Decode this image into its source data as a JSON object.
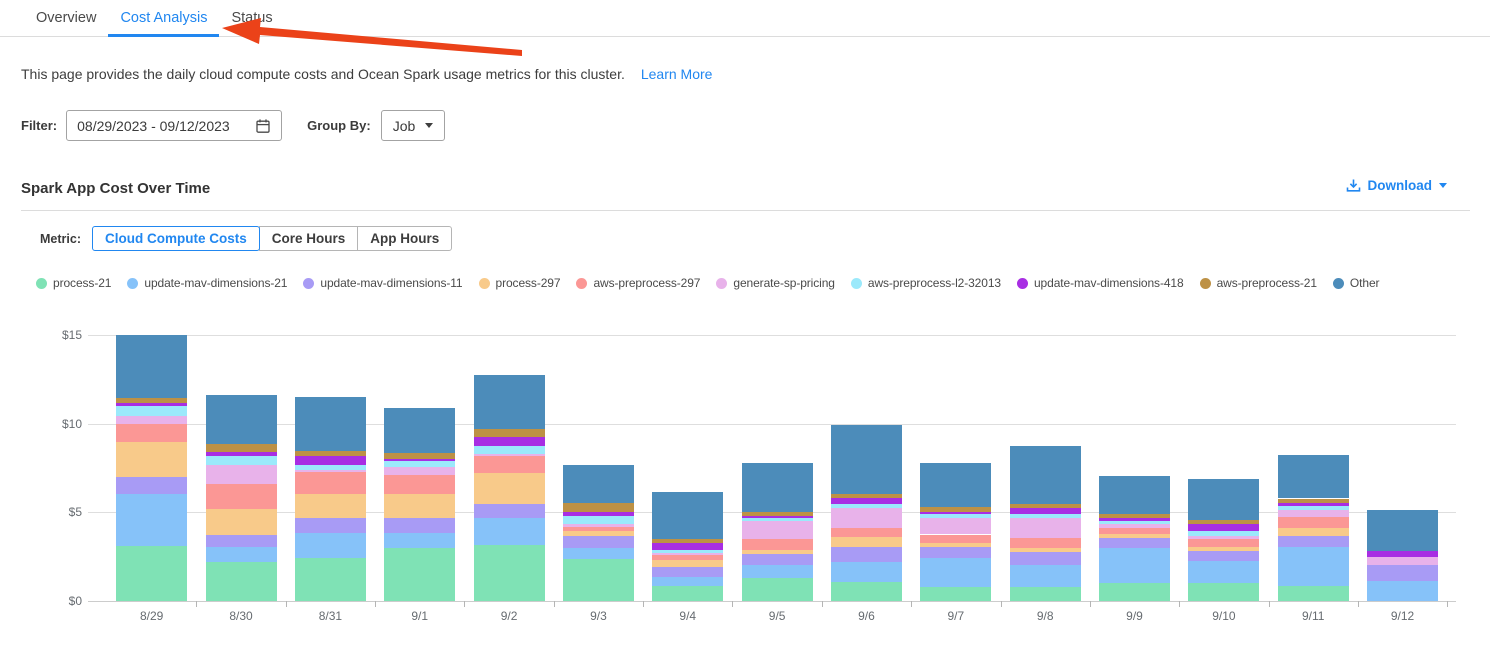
{
  "tabs": {
    "items": [
      {
        "label": "Overview"
      },
      {
        "label": "Cost Analysis"
      },
      {
        "label": "Status"
      }
    ],
    "active": "Cost Analysis"
  },
  "description": {
    "text": "This page provides the daily cloud compute costs and Ocean Spark usage metrics for this cluster.",
    "link": "Learn More"
  },
  "filters": {
    "filter_label": "Filter:",
    "date_range": "08/29/2023  -  09/12/2023",
    "group_by_label": "Group By:",
    "group_by_value": "Job"
  },
  "section": {
    "title": "Spark App Cost Over Time",
    "download_label": "Download"
  },
  "metric": {
    "label": "Metric:",
    "options": [
      "Cloud Compute Costs",
      "Core Hours",
      "App Hours"
    ],
    "selected": "Cloud Compute Costs"
  },
  "colors": {
    "accent_blue": "#2187f0",
    "arrow_red": "#eb4219",
    "gridline": "#dedede",
    "axis_text": "#666b70"
  },
  "chart_data": {
    "type": "bar",
    "stacked": true,
    "title": "Spark App Cost Over Time",
    "xlabel": "",
    "ylabel": "",
    "ytick_prefix": "$",
    "yticks": [
      0,
      5,
      10,
      15
    ],
    "ylim": [
      0,
      15
    ],
    "grid": true,
    "legend_position": "top",
    "categories": [
      "8/29",
      "8/30",
      "8/31",
      "9/1",
      "9/2",
      "9/3",
      "9/4",
      "9/5",
      "9/6",
      "9/7",
      "9/8",
      "9/9",
      "9/10",
      "9/11",
      "9/12"
    ],
    "series": [
      {
        "name": "process-21",
        "color": "#7fe2b5",
        "values": [
          3.1,
          2.18,
          2.4,
          3.01,
          3.14,
          2.39,
          0.87,
          1.29,
          1.06,
          0.81,
          0.81,
          1.0,
          1.04,
          0.85,
          0
        ]
      },
      {
        "name": "update-mav-dimensions-21",
        "color": "#86c2f9",
        "values": [
          2.95,
          0.88,
          1.42,
          0.85,
          1.52,
          0.6,
          0.46,
          0.72,
          1.14,
          1.61,
          1.2,
          1.99,
          1.2,
          2.18,
          1.14
        ]
      },
      {
        "name": "update-mav-dimensions-11",
        "color": "#a89bf5",
        "values": [
          0.96,
          0.68,
          0.84,
          0.84,
          0.83,
          0.66,
          0.56,
          0.64,
          0.83,
          0.61,
          0.75,
          0.57,
          0.56,
          0.66,
          0.91
        ]
      },
      {
        "name": "process-297",
        "color": "#f8ca8a",
        "values": [
          1.94,
          1.45,
          1.36,
          1.32,
          1.71,
          0.29,
          0.44,
          0.25,
          0.57,
          0.24,
          0.23,
          0.22,
          0.23,
          0.44,
          0
        ]
      },
      {
        "name": "aws-preprocess-297",
        "color": "#fb9795",
        "values": [
          1.05,
          1.41,
          1.23,
          1.1,
          0.95,
          0.23,
          0.25,
          0.62,
          0.49,
          0.48,
          0.57,
          0.31,
          0.48,
          0.6,
          0
        ]
      },
      {
        "name": "generate-sp-pricing",
        "color": "#e8b2ea",
        "values": [
          0.45,
          1.09,
          0.13,
          0.41,
          0.15,
          0.15,
          0.11,
          0.99,
          1.14,
          0.95,
          1.1,
          0.23,
          0.18,
          0.42,
          0.45
        ]
      },
      {
        "name": "aws-preprocess-l2-32013",
        "color": "#9be9fb",
        "values": [
          0.55,
          0.49,
          0.3,
          0.34,
          0.45,
          0.47,
          0.21,
          0.15,
          0.22,
          0.19,
          0.23,
          0.19,
          0.25,
          0.19,
          0
        ]
      },
      {
        "name": "update-mav-dimensions-418",
        "color": "#a82ee3",
        "values": [
          0.17,
          0.22,
          0.51,
          0.14,
          0.47,
          0.23,
          0.36,
          0.13,
          0.35,
          0.14,
          0.37,
          0.19,
          0.38,
          0.19,
          0.34
        ]
      },
      {
        "name": "aws-preprocess-21",
        "color": "#bd9145",
        "values": [
          0.28,
          0.45,
          0.28,
          0.31,
          0.46,
          0.53,
          0.21,
          0.23,
          0.26,
          0.27,
          0.23,
          0.22,
          0.23,
          0.25,
          0
        ]
      },
      {
        "name": "Other",
        "color": "#4c8cba",
        "values": [
          3.55,
          2.75,
          3.05,
          2.58,
          3.05,
          2.14,
          2.69,
          2.75,
          3.88,
          2.47,
          3.26,
          2.11,
          2.33,
          2.44,
          2.27
        ]
      }
    ]
  }
}
